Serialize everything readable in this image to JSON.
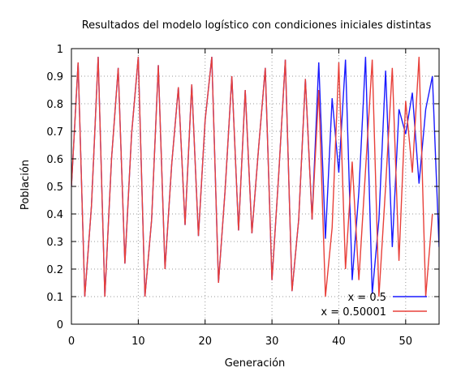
{
  "chart_data": {
    "type": "line",
    "title": "Resultados del modelo logístico con condiciones iniciales distintas",
    "xlabel": "Generación",
    "ylabel": "Población",
    "xlim": [
      0,
      55
    ],
    "ylim": [
      0,
      1
    ],
    "xticks": [
      "0",
      "10",
      "20",
      "30",
      "40",
      "50"
    ],
    "yticks": [
      "0",
      "0.1",
      "0.2",
      "0.3",
      "0.4",
      "0.5",
      "0.6",
      "0.7",
      "0.8",
      "0.9",
      "1"
    ],
    "grid": true,
    "legend_position": "bottom-right",
    "series": [
      {
        "name": "x = 0.5",
        "color": "#1a1aff",
        "values": [
          0.5,
          0.95,
          0.1,
          0.43,
          0.97,
          0.1,
          0.6,
          0.93,
          0.22,
          0.69,
          0.97,
          0.1,
          0.38,
          0.94,
          0.2,
          0.58,
          0.86,
          0.36,
          0.87,
          0.32,
          0.74,
          0.97,
          0.15,
          0.49,
          0.9,
          0.34,
          0.85,
          0.33,
          0.64,
          0.93,
          0.16,
          0.54,
          0.96,
          0.12,
          0.38,
          0.89,
          0.38,
          0.95,
          0.31,
          0.82,
          0.55,
          0.96,
          0.16,
          0.48,
          0.97,
          0.11,
          0.38,
          0.92,
          0.28,
          0.78,
          0.69,
          0.84,
          0.51,
          0.78,
          0.9,
          0.28
        ]
      },
      {
        "name": "x = 0.50001",
        "color": "#e8403a",
        "values": [
          0.5,
          0.95,
          0.1,
          0.43,
          0.97,
          0.1,
          0.6,
          0.93,
          0.22,
          0.69,
          0.97,
          0.1,
          0.38,
          0.94,
          0.2,
          0.58,
          0.86,
          0.36,
          0.87,
          0.32,
          0.74,
          0.97,
          0.15,
          0.49,
          0.9,
          0.34,
          0.85,
          0.33,
          0.64,
          0.93,
          0.16,
          0.54,
          0.96,
          0.12,
          0.38,
          0.89,
          0.38,
          0.85,
          0.1,
          0.35,
          0.95,
          0.2,
          0.59,
          0.16,
          0.56,
          0.96,
          0.1,
          0.5,
          0.93,
          0.23,
          0.81,
          0.55,
          0.97,
          0.1,
          0.4
        ]
      }
    ]
  }
}
